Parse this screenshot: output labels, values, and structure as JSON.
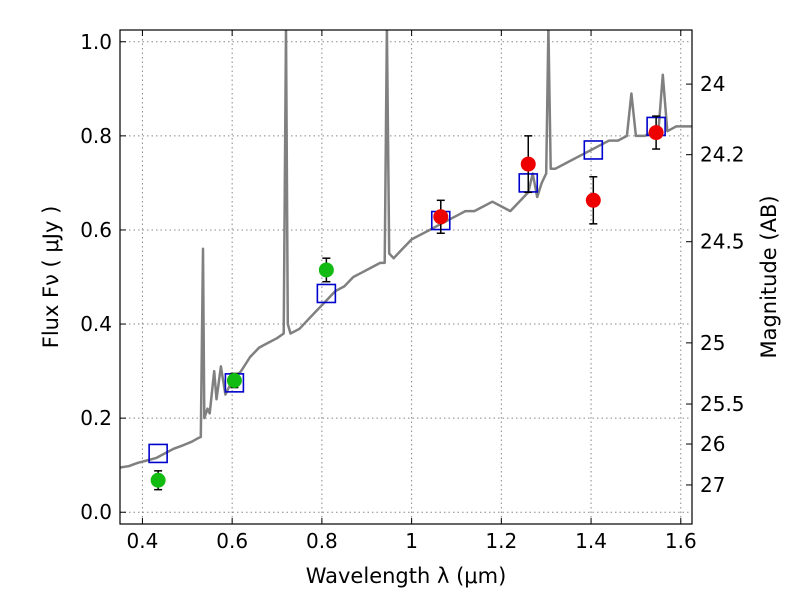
{
  "chart_data": {
    "type": "scatter",
    "xlabel": "Wavelength  λ (μm)",
    "ylabel": "Flux  Fν  ( μJy )",
    "y2label": "Magnitude (AB)",
    "xlim": [
      0.35,
      1.625
    ],
    "ylim": [
      -0.025,
      1.025
    ],
    "grid": true,
    "x_ticks": [
      0.4,
      0.6,
      0.8,
      1.0,
      1.2,
      1.4,
      1.6
    ],
    "x_tick_labels": [
      "0.4",
      "0.6",
      "0.8",
      "1",
      "1.2",
      "1.4",
      "1.6"
    ],
    "y_ticks": [
      0.0,
      0.2,
      0.4,
      0.6,
      0.8,
      1.0
    ],
    "y_tick_labels": [
      "0.0",
      "0.2",
      "0.4",
      "0.6",
      "0.8",
      "1.0"
    ],
    "y2_ticks": [
      {
        "label": "24",
        "flux": 0.91
      },
      {
        "label": "24.2",
        "flux": 0.76
      },
      {
        "label": "24.5",
        "flux": 0.575
      },
      {
        "label": "25",
        "flux": 0.36
      },
      {
        "label": "25.5",
        "flux": 0.23
      },
      {
        "label": "26",
        "flux": 0.145
      },
      {
        "label": "27",
        "flux": 0.058
      }
    ],
    "colors": {
      "spectrum": "#808080",
      "model": "#0000cc",
      "green_points": "#11bb11",
      "red_points": "#ee0000",
      "errorbar": "#000000",
      "grid": "#888888"
    },
    "spectrum": [
      [
        0.35,
        0.095
      ],
      [
        0.37,
        0.098
      ],
      [
        0.39,
        0.105
      ],
      [
        0.41,
        0.11
      ],
      [
        0.43,
        0.115
      ],
      [
        0.45,
        0.125
      ],
      [
        0.47,
        0.135
      ],
      [
        0.49,
        0.142
      ],
      [
        0.51,
        0.15
      ],
      [
        0.525,
        0.158
      ],
      [
        0.53,
        0.16
      ],
      [
        0.535,
        0.56
      ],
      [
        0.538,
        0.2
      ],
      [
        0.545,
        0.22
      ],
      [
        0.55,
        0.21
      ],
      [
        0.56,
        0.3
      ],
      [
        0.565,
        0.24
      ],
      [
        0.575,
        0.31
      ],
      [
        0.585,
        0.25
      ],
      [
        0.6,
        0.28
      ],
      [
        0.62,
        0.3
      ],
      [
        0.64,
        0.33
      ],
      [
        0.66,
        0.35
      ],
      [
        0.68,
        0.36
      ],
      [
        0.7,
        0.37
      ],
      [
        0.715,
        0.38
      ],
      [
        0.72,
        1.03
      ],
      [
        0.724,
        0.4
      ],
      [
        0.73,
        0.38
      ],
      [
        0.75,
        0.39
      ],
      [
        0.77,
        0.41
      ],
      [
        0.79,
        0.43
      ],
      [
        0.81,
        0.45
      ],
      [
        0.83,
        0.47
      ],
      [
        0.85,
        0.48
      ],
      [
        0.87,
        0.5
      ],
      [
        0.89,
        0.51
      ],
      [
        0.91,
        0.52
      ],
      [
        0.93,
        0.53
      ],
      [
        0.94,
        0.53
      ],
      [
        0.945,
        1.03
      ],
      [
        0.95,
        0.55
      ],
      [
        0.96,
        0.54
      ],
      [
        0.97,
        0.55
      ],
      [
        0.98,
        0.56
      ],
      [
        0.99,
        0.57
      ],
      [
        1.0,
        0.58
      ],
      [
        1.02,
        0.59
      ],
      [
        1.04,
        0.6
      ],
      [
        1.06,
        0.61
      ],
      [
        1.08,
        0.62
      ],
      [
        1.1,
        0.63
      ],
      [
        1.12,
        0.64
      ],
      [
        1.14,
        0.64
      ],
      [
        1.16,
        0.65
      ],
      [
        1.18,
        0.66
      ],
      [
        1.2,
        0.65
      ],
      [
        1.22,
        0.64
      ],
      [
        1.24,
        0.66
      ],
      [
        1.26,
        0.68
      ],
      [
        1.27,
        0.72
      ],
      [
        1.28,
        0.67
      ],
      [
        1.29,
        0.7
      ],
      [
        1.3,
        0.72
      ],
      [
        1.305,
        1.03
      ],
      [
        1.31,
        0.73
      ],
      [
        1.32,
        0.73
      ],
      [
        1.34,
        0.74
      ],
      [
        1.36,
        0.75
      ],
      [
        1.38,
        0.76
      ],
      [
        1.4,
        0.77
      ],
      [
        1.42,
        0.78
      ],
      [
        1.44,
        0.79
      ],
      [
        1.46,
        0.79
      ],
      [
        1.48,
        0.8
      ],
      [
        1.49,
        0.89
      ],
      [
        1.5,
        0.8
      ],
      [
        1.52,
        0.8
      ],
      [
        1.54,
        0.81
      ],
      [
        1.55,
        0.81
      ],
      [
        1.56,
        0.93
      ],
      [
        1.57,
        0.81
      ],
      [
        1.59,
        0.82
      ],
      [
        1.61,
        0.82
      ],
      [
        1.625,
        0.82
      ]
    ],
    "model_points": [
      {
        "x": 0.435,
        "y": 0.125
      },
      {
        "x": 0.605,
        "y": 0.275
      },
      {
        "x": 0.81,
        "y": 0.465
      },
      {
        "x": 1.065,
        "y": 0.62
      },
      {
        "x": 1.26,
        "y": 0.7
      },
      {
        "x": 1.405,
        "y": 0.77
      },
      {
        "x": 1.545,
        "y": 0.82
      }
    ],
    "observed_green": [
      {
        "x": 0.435,
        "y": 0.068,
        "err": 0.02
      },
      {
        "x": 0.605,
        "y": 0.28,
        "err": 0.015
      },
      {
        "x": 0.81,
        "y": 0.515,
        "err": 0.025
      }
    ],
    "observed_red": [
      {
        "x": 1.065,
        "y": 0.628,
        "err": 0.035
      },
      {
        "x": 1.26,
        "y": 0.74,
        "err": 0.06
      },
      {
        "x": 1.405,
        "y": 0.663,
        "err": 0.05
      },
      {
        "x": 1.545,
        "y": 0.807,
        "err": 0.035
      }
    ]
  }
}
